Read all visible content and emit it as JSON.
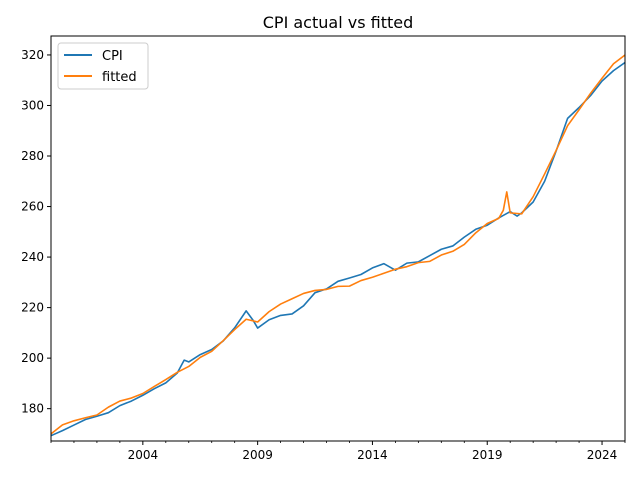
{
  "chart_data": {
    "type": "line",
    "title": "CPI actual vs fitted",
    "xlabel": "",
    "ylabel": "",
    "xlim": [
      2000.0,
      2025.0
    ],
    "ylim": [
      167.2,
      327.5
    ],
    "x_ticks": [
      2004,
      2009,
      2014,
      2019,
      2024
    ],
    "y_ticks": [
      180,
      200,
      220,
      240,
      260,
      280,
      300,
      320
    ],
    "grid": false,
    "legend_position": "top-left",
    "x_tick_labels": [
      "2004",
      "2009",
      "2014",
      "2019",
      "2024"
    ],
    "y_tick_labels": [
      "180",
      "200",
      "220",
      "240",
      "260",
      "280",
      "300",
      "320"
    ],
    "series": [
      {
        "name": "CPI",
        "color": "#1f77b4",
        "points": [
          [
            2000.0,
            169.3
          ],
          [
            2000.5,
            171.3
          ],
          [
            2001.0,
            173.5
          ],
          [
            2001.5,
            175.7
          ],
          [
            2002.0,
            177.0
          ],
          [
            2002.5,
            178.4
          ],
          [
            2003.0,
            181.2
          ],
          [
            2003.5,
            183.0
          ],
          [
            2004.0,
            185.3
          ],
          [
            2004.5,
            187.9
          ],
          [
            2005.0,
            190.2
          ],
          [
            2005.5,
            194.1
          ],
          [
            2005.8,
            199.2
          ],
          [
            2006.0,
            198.5
          ],
          [
            2006.5,
            201.4
          ],
          [
            2007.0,
            203.4
          ],
          [
            2007.5,
            206.8
          ],
          [
            2008.0,
            212.0
          ],
          [
            2008.5,
            218.7
          ],
          [
            2008.8,
            215.0
          ],
          [
            2009.0,
            211.9
          ],
          [
            2009.5,
            215.2
          ],
          [
            2010.0,
            216.9
          ],
          [
            2010.5,
            217.5
          ],
          [
            2011.0,
            220.7
          ],
          [
            2011.5,
            225.9
          ],
          [
            2012.0,
            227.4
          ],
          [
            2012.5,
            230.4
          ],
          [
            2013.0,
            231.7
          ],
          [
            2013.5,
            233.1
          ],
          [
            2014.0,
            235.7
          ],
          [
            2014.5,
            237.4
          ],
          [
            2015.0,
            234.8
          ],
          [
            2015.5,
            237.6
          ],
          [
            2016.0,
            238.1
          ],
          [
            2016.5,
            240.6
          ],
          [
            2017.0,
            243.1
          ],
          [
            2017.5,
            244.4
          ],
          [
            2018.0,
            247.9
          ],
          [
            2018.5,
            251.0
          ],
          [
            2019.0,
            252.6
          ],
          [
            2019.5,
            255.5
          ],
          [
            2020.0,
            258.0
          ],
          [
            2020.3,
            256.2
          ],
          [
            2020.5,
            257.5
          ],
          [
            2021.0,
            261.8
          ],
          [
            2021.5,
            270.0
          ],
          [
            2022.0,
            282.0
          ],
          [
            2022.5,
            294.9
          ],
          [
            2023.0,
            299.2
          ],
          [
            2023.5,
            303.9
          ],
          [
            2024.0,
            309.7
          ],
          [
            2024.5,
            313.8
          ],
          [
            2025.0,
            317.0
          ]
        ]
      },
      {
        "name": "fitted",
        "color": "#ff7f0e",
        "points": [
          [
            2000.0,
            170.0
          ],
          [
            2000.5,
            173.6
          ],
          [
            2001.0,
            175.2
          ],
          [
            2001.5,
            176.4
          ],
          [
            2002.0,
            177.5
          ],
          [
            2002.5,
            180.6
          ],
          [
            2003.0,
            183.0
          ],
          [
            2003.5,
            184.2
          ],
          [
            2004.0,
            186.0
          ],
          [
            2004.5,
            188.8
          ],
          [
            2005.0,
            191.5
          ],
          [
            2005.5,
            194.4
          ],
          [
            2006.0,
            196.7
          ],
          [
            2006.5,
            200.3
          ],
          [
            2007.0,
            202.7
          ],
          [
            2007.5,
            206.9
          ],
          [
            2008.0,
            211.3
          ],
          [
            2008.5,
            215.4
          ],
          [
            2009.0,
            214.3
          ],
          [
            2009.5,
            218.4
          ],
          [
            2010.0,
            221.4
          ],
          [
            2010.5,
            223.5
          ],
          [
            2011.0,
            225.6
          ],
          [
            2011.5,
            226.8
          ],
          [
            2012.0,
            227.2
          ],
          [
            2012.5,
            228.4
          ],
          [
            2013.0,
            228.5
          ],
          [
            2013.5,
            230.7
          ],
          [
            2014.0,
            232.0
          ],
          [
            2014.5,
            233.6
          ],
          [
            2015.0,
            235.2
          ],
          [
            2015.5,
            236.2
          ],
          [
            2016.0,
            237.8
          ],
          [
            2016.5,
            238.3
          ],
          [
            2017.0,
            240.8
          ],
          [
            2017.5,
            242.3
          ],
          [
            2018.0,
            245.0
          ],
          [
            2018.5,
            249.6
          ],
          [
            2019.0,
            253.3
          ],
          [
            2019.5,
            255.3
          ],
          [
            2019.7,
            258.5
          ],
          [
            2019.85,
            265.8
          ],
          [
            2020.0,
            257.5
          ],
          [
            2020.5,
            257.1
          ],
          [
            2021.0,
            263.9
          ],
          [
            2021.5,
            272.9
          ],
          [
            2022.0,
            282.2
          ],
          [
            2022.5,
            292.0
          ],
          [
            2023.0,
            298.3
          ],
          [
            2023.5,
            304.8
          ],
          [
            2024.0,
            310.8
          ],
          [
            2024.5,
            316.5
          ],
          [
            2025.0,
            320.0
          ]
        ]
      }
    ]
  }
}
